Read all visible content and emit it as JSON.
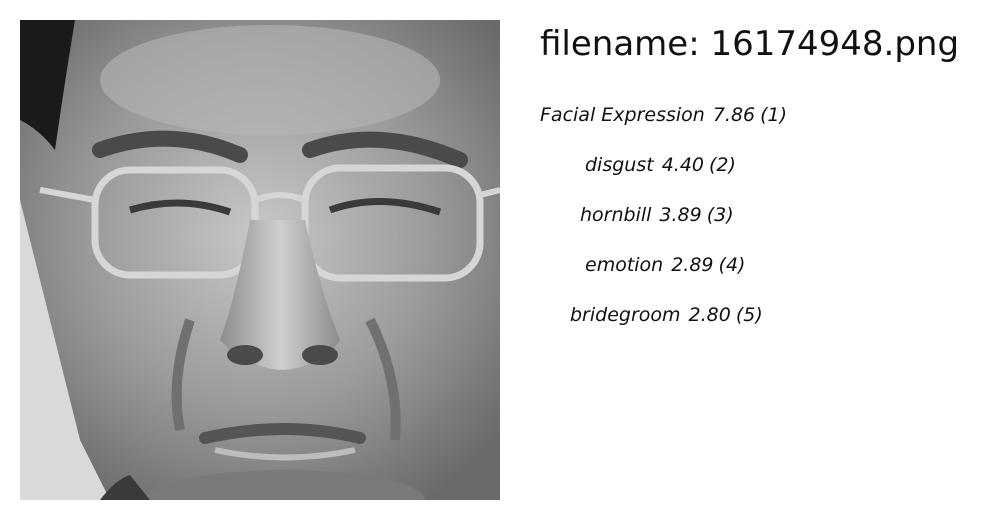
{
  "image": {
    "subject": "grayscale close-up photo of a man's face with eyeglasses"
  },
  "filename_label": "filename: 16174948.png",
  "predictions": [
    {
      "label": "Facial Expression",
      "score": "7.86",
      "rank": "(1)"
    },
    {
      "label": "disgust",
      "score": "4.40",
      "rank": "(2)"
    },
    {
      "label": "hornbill",
      "score": "3.89",
      "rank": "(3)"
    },
    {
      "label": "emotion",
      "score": "2.89",
      "rank": "(4)"
    },
    {
      "label": "bridegroom",
      "score": "2.80",
      "rank": "(5)"
    }
  ]
}
